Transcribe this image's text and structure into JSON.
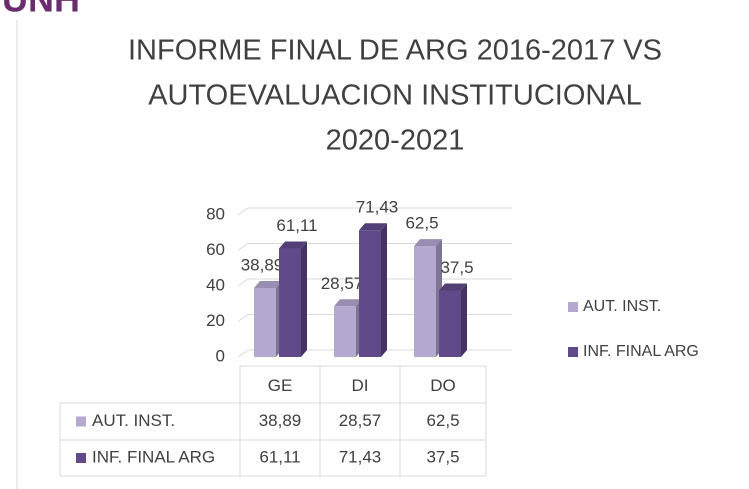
{
  "logo_text": "UNH",
  "chart_data": {
    "type": "bar3d",
    "title_lines": [
      "INFORME FINAL DE ARG 2016-2017 VS",
      "AUTOEVALUACION INSTITUCIONAL",
      "2020-2021"
    ],
    "categories": [
      "GE",
      "DI",
      "DO"
    ],
    "series": [
      {
        "name": "AUT. INST.",
        "color": "#b4a7d0",
        "values": [
          38.89,
          28.57,
          62.5
        ],
        "value_labels": [
          "38,89",
          "28,57",
          "62,5"
        ]
      },
      {
        "name": "INF. FINAL ARG",
        "color": "#604a8a",
        "values": [
          61.11,
          71.43,
          37.5
        ],
        "value_labels": [
          "61,11",
          "71,43",
          "37,5"
        ]
      }
    ],
    "ylim": [
      0,
      80
    ],
    "yticks": [
      0,
      20,
      40,
      60,
      80
    ],
    "grid": true,
    "legend": "right",
    "data_table": true
  }
}
